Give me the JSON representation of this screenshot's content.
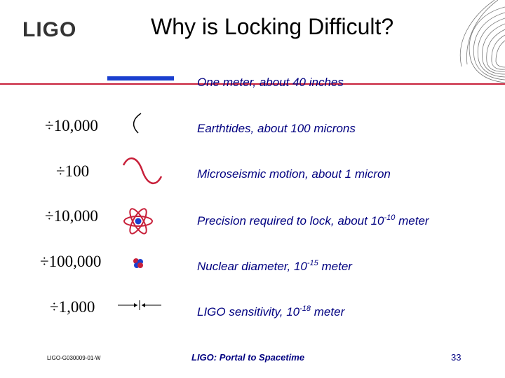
{
  "header": {
    "logo": "LIGO",
    "title": "Why is Locking Difficult?"
  },
  "rows": [
    {
      "divisor": "",
      "text": "One meter, about 40 inches",
      "icon": "blue-bar-icon"
    },
    {
      "divisor": "÷10,000",
      "text": "Earthtides, about 100 microns",
      "icon": "small-arc-icon"
    },
    {
      "divisor": "÷100",
      "text": "Microseismic motion, about 1 micron",
      "icon": "sine-wave-icon"
    },
    {
      "divisor": "÷10,000",
      "text_prefix": "Precision required to lock, about 10",
      "sup": "-10",
      "text_suffix": " meter",
      "icon": "atom-icon"
    },
    {
      "divisor": "÷100,000",
      "text_prefix": "Nuclear diameter, 10",
      "sup": "-15",
      "text_suffix": " meter",
      "icon": "nucleus-icon"
    },
    {
      "divisor": "÷1,000",
      "text_prefix": "LIGO sensitivity, 10",
      "sup": "-18",
      "text_suffix": " meter",
      "icon": "arrows-converging-icon"
    }
  ],
  "footer": {
    "doc_id": "LIGO-G030009-01-W",
    "center": "LIGO: Portal to Spacetime",
    "page": "33"
  },
  "colors": {
    "accent_red": "#c8203a",
    "blue": "#1a3fcf",
    "navy_text": "#000080"
  }
}
